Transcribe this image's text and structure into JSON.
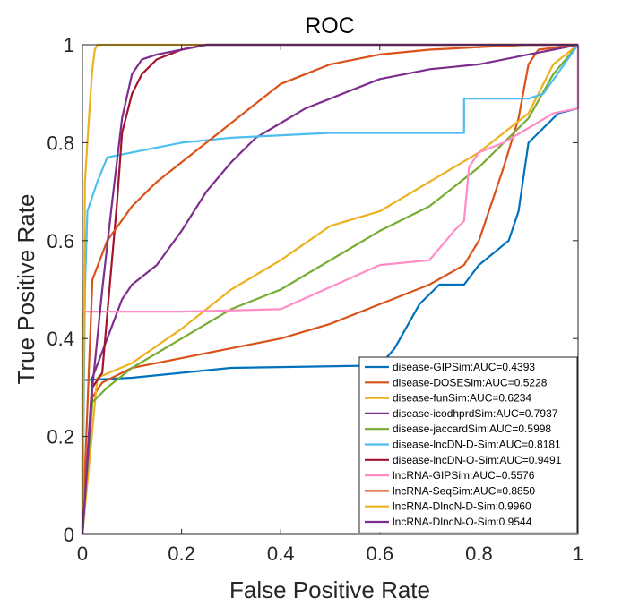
{
  "chart_data": {
    "type": "line",
    "title": "ROC",
    "xlabel": "False Positive Rate",
    "ylabel": "True Positive Rate",
    "xlim": [
      0,
      1
    ],
    "ylim": [
      0,
      1
    ],
    "xticks": [
      "0",
      "0.2",
      "0.4",
      "0.6",
      "0.8",
      "1"
    ],
    "yticks": [
      "0",
      "0.2",
      "0.4",
      "0.6",
      "0.8",
      "1"
    ],
    "grid": false,
    "legend_position": "bottom-right",
    "series": [
      {
        "name": "disease-GIPSim:AUC=0.4393",
        "color": "#0072BD",
        "x": [
          0,
          0,
          0.1,
          0.3,
          0.6,
          0.63,
          0.68,
          0.72,
          0.77,
          0.8,
          0.86,
          0.88,
          0.9,
          0.95,
          0.96,
          1,
          1
        ],
        "y": [
          0,
          0.315,
          0.32,
          0.34,
          0.345,
          0.38,
          0.47,
          0.51,
          0.51,
          0.55,
          0.6,
          0.66,
          0.8,
          0.85,
          0.86,
          0.87,
          1
        ]
      },
      {
        "name": "disease-DOSESim:AUC=0.5228",
        "color": "#D95319",
        "x": [
          0,
          0.02,
          0.04,
          0.1,
          0.2,
          0.3,
          0.4,
          0.5,
          0.6,
          0.7,
          0.77,
          0.8,
          0.82,
          0.85,
          0.88,
          0.9,
          0.92,
          1
        ],
        "y": [
          0,
          0.28,
          0.31,
          0.34,
          0.36,
          0.38,
          0.4,
          0.43,
          0.47,
          0.51,
          0.55,
          0.6,
          0.66,
          0.75,
          0.85,
          0.96,
          0.99,
          1
        ]
      },
      {
        "name": "disease-funSim:AUC=0.6234",
        "color": "#EDB120",
        "x": [
          0,
          0.03,
          0.1,
          0.2,
          0.3,
          0.4,
          0.5,
          0.6,
          0.7,
          0.8,
          0.9,
          0.95,
          1
        ],
        "y": [
          0,
          0.32,
          0.35,
          0.42,
          0.5,
          0.56,
          0.63,
          0.66,
          0.72,
          0.78,
          0.86,
          0.96,
          1
        ]
      },
      {
        "name": "disease-icodhprdSim:AUC=0.7937",
        "color": "#7E2F8E",
        "x": [
          0,
          0.02,
          0.05,
          0.08,
          0.1,
          0.15,
          0.2,
          0.25,
          0.3,
          0.35,
          0.4,
          0.45,
          0.5,
          0.55,
          0.6,
          0.7,
          0.8,
          0.9,
          0.95,
          1
        ],
        "y": [
          0,
          0.32,
          0.4,
          0.48,
          0.51,
          0.55,
          0.62,
          0.7,
          0.76,
          0.81,
          0.84,
          0.87,
          0.89,
          0.91,
          0.93,
          0.95,
          0.96,
          0.98,
          0.99,
          1
        ]
      },
      {
        "name": "disease-jaccardSim:AUC=0.5998",
        "color": "#77AC30",
        "x": [
          0,
          0.02,
          0.05,
          0.1,
          0.2,
          0.3,
          0.4,
          0.5,
          0.6,
          0.7,
          0.8,
          0.9,
          0.95,
          1
        ],
        "y": [
          0,
          0.27,
          0.3,
          0.34,
          0.4,
          0.46,
          0.5,
          0.56,
          0.62,
          0.67,
          0.75,
          0.85,
          0.94,
          1
        ]
      },
      {
        "name": "disease-lncDN-D-Sim:AUC=0.8181",
        "color": "#4DBEEE",
        "x": [
          0,
          0.005,
          0.01,
          0.03,
          0.05,
          0.1,
          0.2,
          0.3,
          0.5,
          0.7,
          0.77,
          0.77,
          0.85,
          0.9,
          0.93,
          1
        ],
        "y": [
          0,
          0.5,
          0.66,
          0.72,
          0.77,
          0.78,
          0.8,
          0.81,
          0.82,
          0.82,
          0.82,
          0.89,
          0.89,
          0.89,
          0.9,
          1
        ]
      },
      {
        "name": "disease-lncDN-O-Sim:AUC=0.9491",
        "color": "#A2142F",
        "x": [
          0,
          0.02,
          0.04,
          0.05,
          0.07,
          0.08,
          0.1,
          0.12,
          0.15,
          0.2,
          0.25,
          0.3,
          0.4,
          0.6,
          0.8,
          1
        ],
        "y": [
          0,
          0.3,
          0.33,
          0.45,
          0.68,
          0.82,
          0.9,
          0.94,
          0.97,
          0.99,
          1,
          1,
          1,
          1,
          1,
          1
        ]
      },
      {
        "name": "lncRNA-GIPSim:AUC=0.5576",
        "color": "#FF8CC6",
        "x": [
          0,
          0,
          0.2,
          0.4,
          0.6,
          0.7,
          0.75,
          0.77,
          0.78,
          0.8,
          0.85,
          0.9,
          0.95,
          1,
          1
        ],
        "y": [
          0,
          0.455,
          0.455,
          0.46,
          0.55,
          0.56,
          0.62,
          0.64,
          0.75,
          0.78,
          0.8,
          0.83,
          0.86,
          0.87,
          1
        ]
      },
      {
        "name": "lncRNA-SeqSim:AUC=0.8850",
        "color": "#D95319",
        "x": [
          0,
          0.02,
          0.05,
          0.1,
          0.15,
          0.2,
          0.25,
          0.3,
          0.35,
          0.4,
          0.45,
          0.5,
          0.6,
          0.7,
          0.8,
          0.9,
          1
        ],
        "y": [
          0,
          0.52,
          0.6,
          0.67,
          0.72,
          0.76,
          0.8,
          0.84,
          0.88,
          0.92,
          0.94,
          0.96,
          0.98,
          0.99,
          0.995,
          1,
          1
        ]
      },
      {
        "name": "lncRNA-DlncN-D-Sim:0.9960",
        "color": "#EDB120",
        "x": [
          0,
          0.005,
          0.01,
          0.015,
          0.02,
          0.025,
          0.03,
          0.2,
          0.4,
          0.6,
          0.8,
          1
        ],
        "y": [
          0,
          0.72,
          0.8,
          0.88,
          0.95,
          0.99,
          1,
          1,
          1,
          1,
          1,
          1
        ]
      },
      {
        "name": "lncRNA-DlncN-O-Sim:0.9544",
        "color": "#7E2F8E",
        "x": [
          0,
          0.02,
          0.04,
          0.06,
          0.08,
          0.1,
          0.12,
          0.15,
          0.2,
          0.25,
          0.3,
          0.5,
          0.7,
          1
        ],
        "y": [
          0,
          0.3,
          0.5,
          0.68,
          0.85,
          0.94,
          0.97,
          0.98,
          0.99,
          1,
          1,
          1,
          1,
          1
        ]
      }
    ]
  }
}
